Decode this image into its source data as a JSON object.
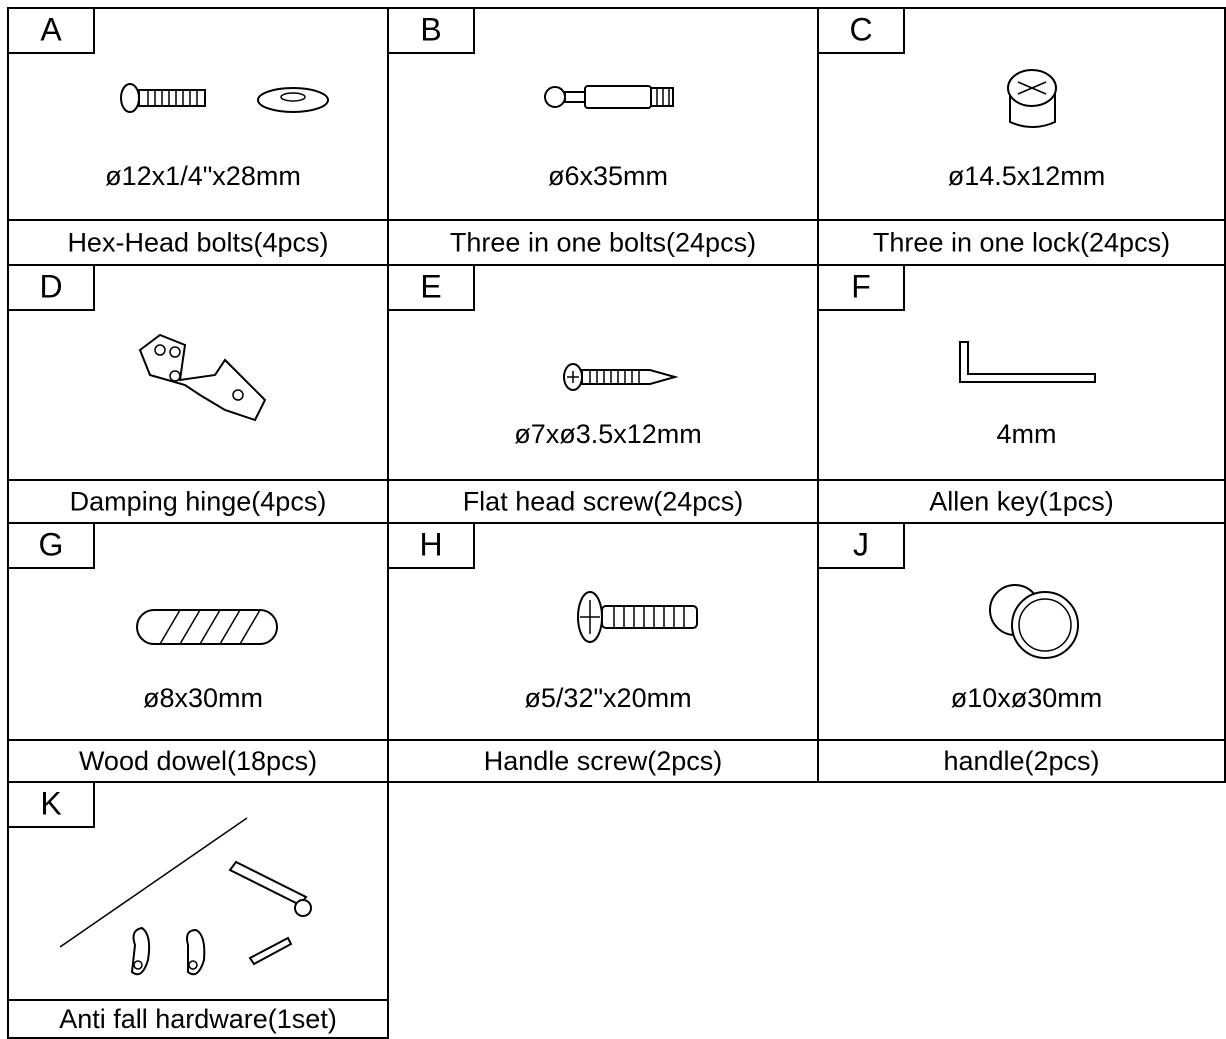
{
  "parts": [
    {
      "letter": "A",
      "size": "ø12x1/4\"x28mm",
      "name": "Hex-Head bolts(4pcs)"
    },
    {
      "letter": "B",
      "size": "ø6x35mm",
      "name": "Three in one bolts(24pcs)"
    },
    {
      "letter": "C",
      "size": "ø14.5x12mm",
      "name": "Three in one lock(24pcs)"
    },
    {
      "letter": "D",
      "name": "Damping hinge(4pcs)"
    },
    {
      "letter": "E",
      "size": "ø7xø3.5x12mm",
      "name": "Flat head screw(24pcs)"
    },
    {
      "letter": "F",
      "size": "4mm",
      "name": "Allen key(1pcs)"
    },
    {
      "letter": "G",
      "size": "ø8x30mm",
      "name": "Wood dowel(18pcs)"
    },
    {
      "letter": "H",
      "size": "ø5/32\"x20mm",
      "name": "Handle screw(2pcs)"
    },
    {
      "letter": "J",
      "size": "ø10xø30mm",
      "name": "handle(2pcs)"
    },
    {
      "letter": "K",
      "name": "Anti fall hardware(1set)"
    }
  ]
}
